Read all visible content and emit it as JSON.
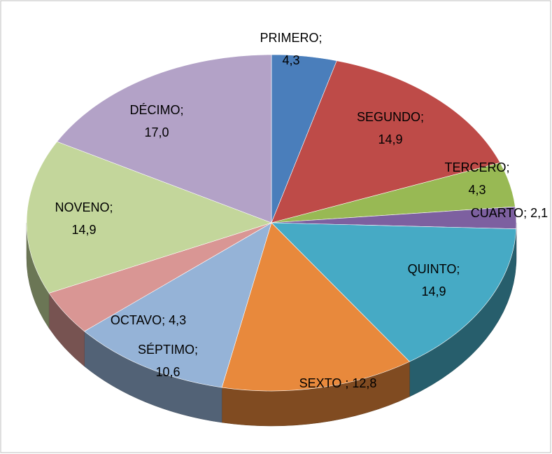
{
  "chart_data": {
    "type": "pie",
    "three_d": true,
    "categories": [
      "PRIMERO;",
      "SEGUNDO;",
      "TERCERO;",
      "CUARTO;",
      "QUINTO;",
      "SEXTO ;",
      "SÉPTIMO;",
      "OCTAVO;",
      "NOVENO;",
      "DÉCIMO;"
    ],
    "values": [
      4.3,
      14.9,
      4.3,
      2.1,
      14.9,
      12.8,
      10.6,
      4.3,
      14.9,
      17.0
    ],
    "value_labels": [
      "4,3",
      "14,9",
      "4,3",
      "2,1",
      "14,9",
      "12,8",
      "10,6",
      "4,3",
      "14,9",
      "17,0"
    ],
    "colors": [
      "#4a7ebb",
      "#be4b48",
      "#98b954",
      "#7d60a0",
      "#46aac5",
      "#e8893c",
      "#95b3d7",
      "#d99694",
      "#c3d69b",
      "#b3a2c7"
    ]
  }
}
